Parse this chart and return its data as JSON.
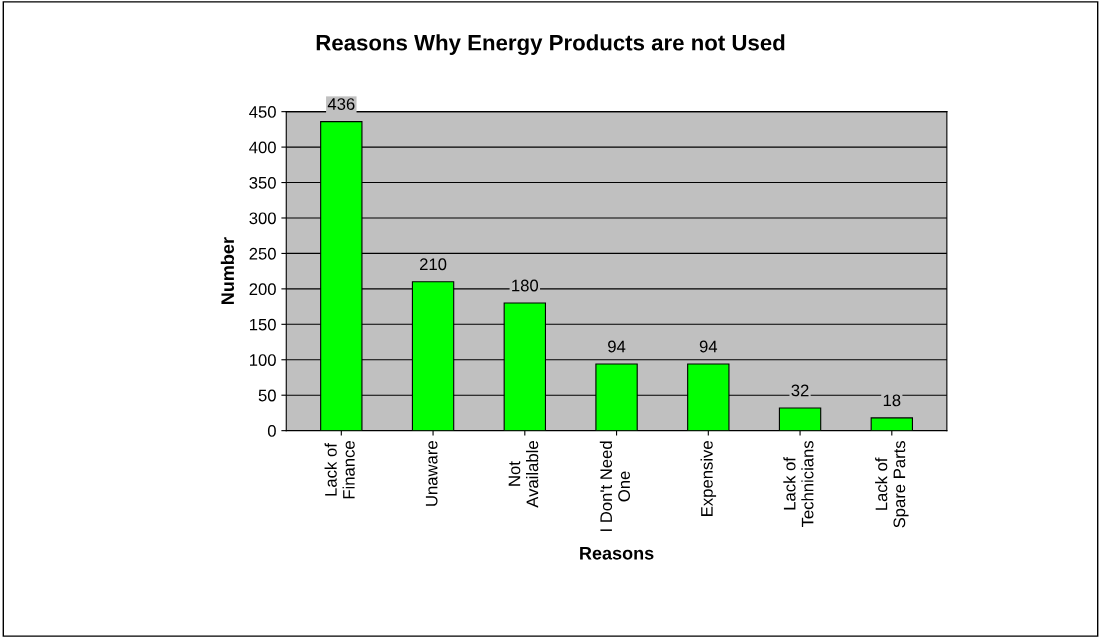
{
  "chart_data": {
    "type": "bar",
    "title": "Reasons Why Energy Products are not Used",
    "xlabel": "Reasons",
    "ylabel": "Number",
    "categories": [
      "Lack of\nFinance",
      "Unaware",
      "Not\nAvailable",
      "I Don't Need\nOne",
      "Expensive",
      "Lack of\nTechnicians",
      "Lack of\nSpare Parts"
    ],
    "values": [
      436,
      210,
      180,
      94,
      94,
      32,
      18
    ],
    "color": "#00ff00",
    "ylim": [
      0,
      450
    ],
    "yticks": [
      0,
      50,
      100,
      150,
      200,
      250,
      300,
      350,
      400,
      450
    ],
    "grid": "y",
    "data_labels": true
  }
}
